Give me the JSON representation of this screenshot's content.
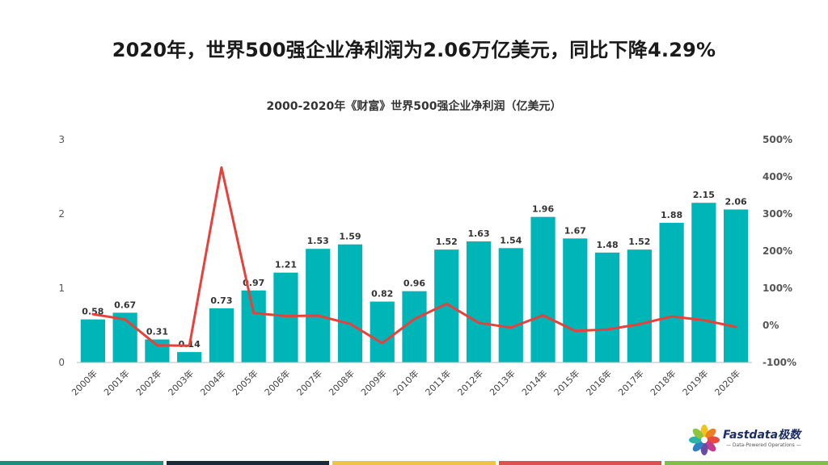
{
  "headline": "2020年，世界500强企业净利润为2.06万亿美元，同比下降4.29%",
  "logo": {
    "name": "Fastdata极数",
    "tagline": "— Data-Powered Operations —"
  },
  "footer_colors": [
    "#1e8c7f",
    "#1b2a3a",
    "#f0c341",
    "#e0504a",
    "#7cbf4a"
  ],
  "chart_data": {
    "type": "bar",
    "title": "2000-2020年《财富》世界500强企业净利润（亿美元）",
    "categories": [
      "2000年",
      "2001年",
      "2002年",
      "2003年",
      "2004年",
      "2005年",
      "2006年",
      "2007年",
      "2008年",
      "2009年",
      "2010年",
      "2011年",
      "2012年",
      "2013年",
      "2014年",
      "2015年",
      "2016年",
      "2017年",
      "2018年",
      "2019年",
      "2020年"
    ],
    "bar_color": "#00b5b8",
    "line_color": "#e8403a",
    "series": [
      {
        "type": "bar",
        "axis": "left",
        "values": [
          0.58,
          0.67,
          0.31,
          0.14,
          0.73,
          0.97,
          1.21,
          1.53,
          1.59,
          0.82,
          0.96,
          1.52,
          1.63,
          1.54,
          1.96,
          1.67,
          1.48,
          1.52,
          1.88,
          2.15,
          2.06
        ],
        "labels": [
          "0.58",
          "0.67",
          "0.31",
          "0.14",
          "0.73",
          "0.97",
          "1.21",
          "1.53",
          "1.59",
          "0.82",
          "0.96",
          "1.52",
          "1.63",
          "1.54",
          "1.96",
          "1.67",
          "1.48",
          "1.52",
          "1.88",
          "2.15",
          "2.06"
        ]
      },
      {
        "type": "line",
        "axis": "right",
        "values": [
          30,
          16,
          -54,
          -55,
          425,
          33,
          25,
          26,
          4,
          -48,
          17,
          58,
          7,
          -6,
          27,
          -15,
          -11,
          3,
          24,
          14,
          -4.29
        ]
      }
    ],
    "ylim": [
      0,
      3
    ],
    "y_ticks": [
      "0",
      "1",
      "2",
      "3"
    ],
    "y2lim": [
      -100,
      500
    ],
    "y2_ticks": [
      "-100%",
      "0%",
      "100%",
      "200%",
      "300%",
      "400%",
      "500%"
    ],
    "grid": false,
    "legend": "none"
  }
}
